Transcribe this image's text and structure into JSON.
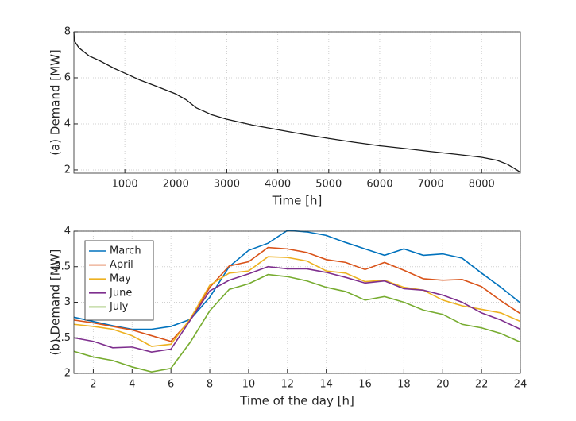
{
  "chart_data": [
    {
      "type": "line",
      "xlabel": "Time [h]",
      "ylabel": "(a) Demand [MW]",
      "x": [
        0,
        10,
        100,
        300,
        500,
        800,
        1000,
        1300,
        1600,
        2000,
        2200,
        2400,
        2700,
        3000,
        3500,
        4000,
        4500,
        5000,
        5500,
        6000,
        6500,
        7000,
        7500,
        8000,
        8300,
        8500,
        8650,
        8760
      ],
      "values": [
        8,
        7.6,
        7.3,
        6.95,
        6.75,
        6.4,
        6.2,
        5.9,
        5.65,
        5.3,
        5.05,
        4.7,
        4.4,
        4.2,
        3.95,
        3.75,
        3.55,
        3.37,
        3.2,
        3.05,
        2.93,
        2.8,
        2.68,
        2.55,
        2.42,
        2.25,
        2.05,
        1.9
      ],
      "color": "#1a1a1a",
      "xlim": [
        0,
        8760
      ],
      "ylim": [
        1.86,
        8
      ],
      "xticks": [
        1000,
        2000,
        3000,
        4000,
        5000,
        6000,
        7000,
        8000
      ],
      "yticks": [
        2,
        4,
        6,
        8
      ],
      "grid": true
    },
    {
      "type": "line",
      "xlabel": "Time of the day [h]",
      "ylabel": "(b) Demand [MW]",
      "x": [
        1,
        2,
        3,
        4,
        5,
        6,
        7,
        8,
        9,
        10,
        11,
        12,
        13,
        14,
        15,
        16,
        17,
        18,
        19,
        20,
        21,
        22,
        23,
        24
      ],
      "series": [
        {
          "name": "March",
          "color": "#0072bd",
          "values": [
            2.79,
            2.73,
            2.67,
            2.62,
            2.62,
            2.66,
            2.76,
            3.07,
            3.5,
            3.73,
            3.83,
            4.01,
            3.99,
            3.94,
            3.84,
            3.75,
            3.66,
            3.75,
            3.66,
            3.68,
            3.62,
            3.41,
            3.21,
            2.99
          ]
        },
        {
          "name": "April",
          "color": "#d95319",
          "values": [
            2.75,
            2.71,
            2.66,
            2.61,
            2.53,
            2.45,
            2.75,
            3.21,
            3.51,
            3.57,
            3.77,
            3.75,
            3.7,
            3.6,
            3.56,
            3.46,
            3.56,
            3.45,
            3.33,
            3.31,
            3.32,
            3.22,
            3.02,
            2.84
          ]
        },
        {
          "name": "May",
          "color": "#edb120",
          "values": [
            2.69,
            2.66,
            2.62,
            2.53,
            2.38,
            2.41,
            2.77,
            3.24,
            3.41,
            3.44,
            3.64,
            3.63,
            3.58,
            3.44,
            3.41,
            3.29,
            3.31,
            3.21,
            3.17,
            3.03,
            2.95,
            2.9,
            2.85,
            2.73
          ]
        },
        {
          "name": "June",
          "color": "#7e2f8e",
          "values": [
            2.5,
            2.45,
            2.36,
            2.37,
            2.3,
            2.34,
            2.75,
            3.16,
            3.31,
            3.4,
            3.5,
            3.47,
            3.47,
            3.42,
            3.35,
            3.27,
            3.3,
            3.19,
            3.17,
            3.1,
            3.0,
            2.85,
            2.75,
            2.62
          ]
        },
        {
          "name": "July",
          "color": "#77ac30",
          "values": [
            2.31,
            2.23,
            2.18,
            2.09,
            2.02,
            2.07,
            2.44,
            2.88,
            3.18,
            3.26,
            3.39,
            3.36,
            3.3,
            3.21,
            3.15,
            3.03,
            3.08,
            3.0,
            2.89,
            2.83,
            2.69,
            2.64,
            2.56,
            2.44
          ]
        }
      ],
      "xlim": [
        1,
        24
      ],
      "ylim": [
        2,
        4
      ],
      "xticks": [
        2,
        4,
        6,
        8,
        10,
        12,
        14,
        16,
        18,
        20,
        22,
        24
      ],
      "yticks": [
        2,
        2.5,
        3,
        3.5,
        4
      ],
      "grid": true,
      "legend": "upper left"
    }
  ]
}
